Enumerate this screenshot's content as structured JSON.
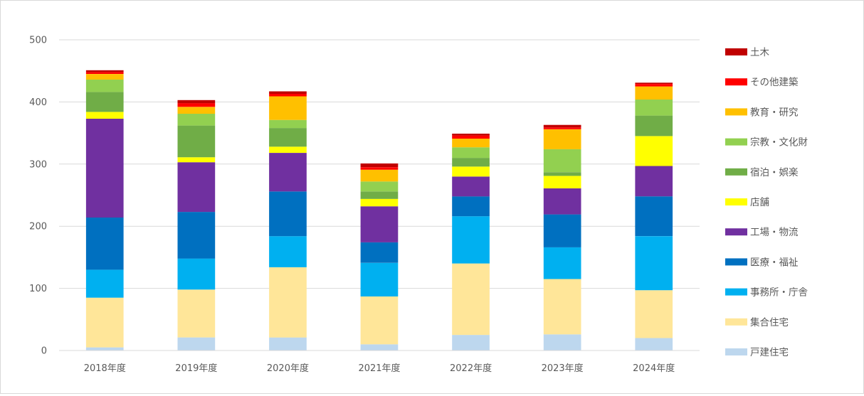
{
  "chart_data": {
    "type": "bar",
    "stacked": true,
    "title": "",
    "xlabel": "",
    "ylabel": "",
    "ylim": [
      0,
      500
    ],
    "yticks": [
      0,
      100,
      200,
      300,
      400,
      500
    ],
    "grid": true,
    "legend_position": "right",
    "categories": [
      "2018年度",
      "2019年度",
      "2020年度",
      "2021年度",
      "2022年度",
      "2023年度",
      "2024年度"
    ],
    "series": [
      {
        "name": "戸建住宅",
        "color": "#BDD7EE",
        "values": [
          5,
          21,
          21,
          10,
          25,
          26,
          20
        ]
      },
      {
        "name": "集合住宅",
        "color": "#FFE699",
        "values": [
          80,
          77,
          113,
          77,
          115,
          89,
          77
        ]
      },
      {
        "name": "事務所・庁舎",
        "color": "#00B0F0",
        "values": [
          45,
          50,
          50,
          54,
          76,
          51,
          87
        ]
      },
      {
        "name": "医療・福祉",
        "color": "#0070C0",
        "values": [
          84,
          75,
          72,
          33,
          32,
          53,
          64
        ]
      },
      {
        "name": "工場・物流",
        "color": "#7030A0",
        "values": [
          159,
          80,
          62,
          58,
          32,
          42,
          49
        ]
      },
      {
        "name": "店舗",
        "color": "#FFFF00",
        "values": [
          11,
          8,
          10,
          12,
          16,
          20,
          48
        ]
      },
      {
        "name": "宿泊・娯楽",
        "color": "#70AD47",
        "values": [
          32,
          51,
          30,
          12,
          14,
          6,
          33
        ]
      },
      {
        "name": "宗教・文化財",
        "color": "#92D050",
        "values": [
          20,
          19,
          13,
          16,
          17,
          37,
          26
        ]
      },
      {
        "name": "教育・研究",
        "color": "#FFC000",
        "values": [
          9,
          11,
          38,
          19,
          14,
          32,
          21
        ]
      },
      {
        "name": "その他建築",
        "color": "#FF0000",
        "values": [
          3,
          6,
          4,
          4,
          5,
          3,
          4
        ]
      },
      {
        "name": "土木",
        "color": "#C00000",
        "values": [
          3,
          5,
          4,
          6,
          3,
          4,
          2
        ]
      }
    ]
  }
}
